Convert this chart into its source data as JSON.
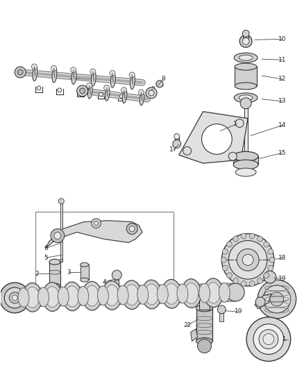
{
  "background_color": "#ffffff",
  "figure_width": 4.38,
  "figure_height": 5.33,
  "dpi": 100,
  "ec": "#333333",
  "fc_light": "#e8e8e8",
  "fc_mid": "#d0d0d0",
  "fc_dark": "#b8b8b8"
}
